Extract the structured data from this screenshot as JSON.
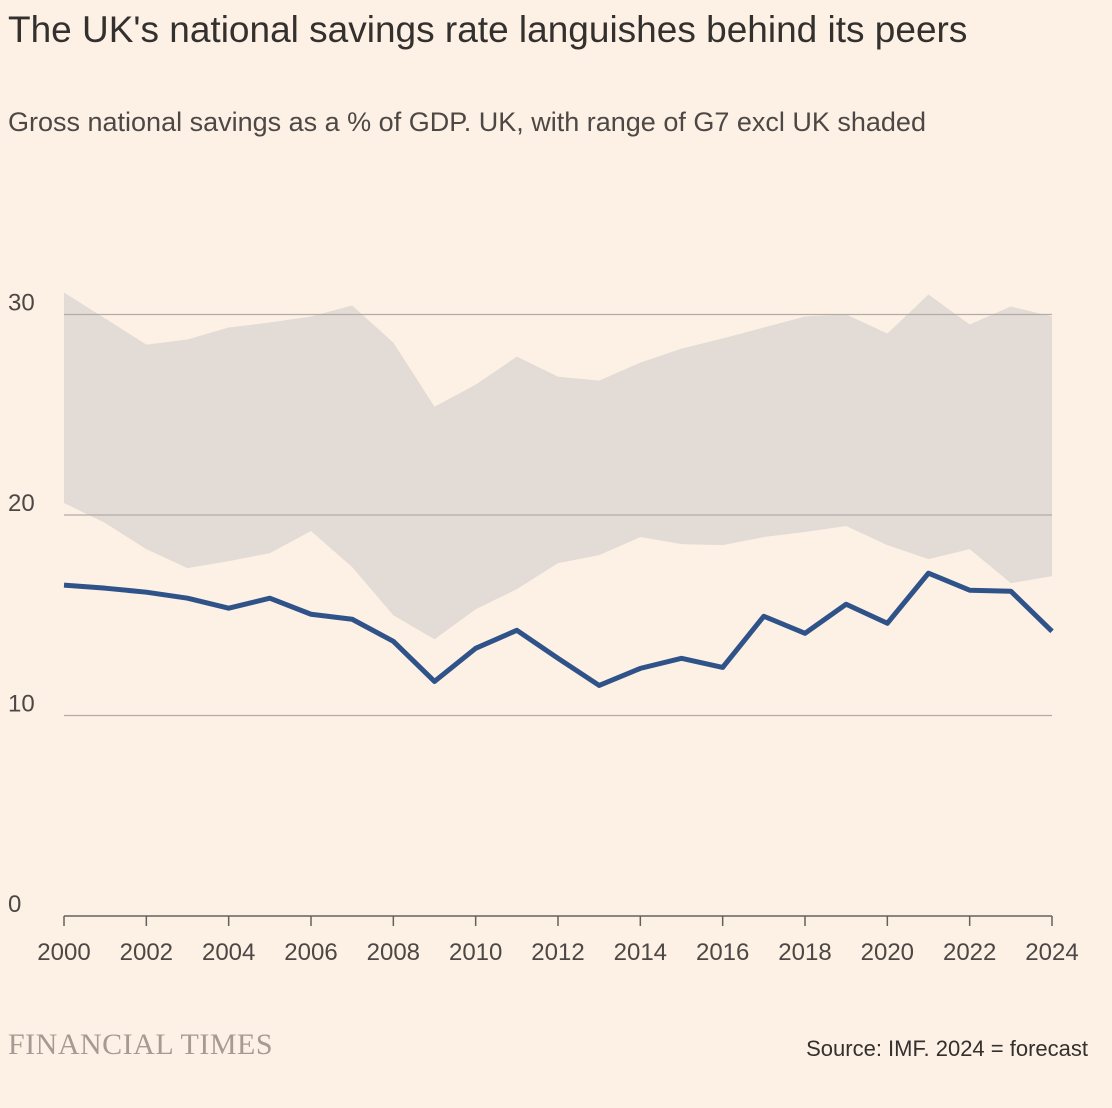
{
  "header": {
    "title": "The UK's national savings rate languishes behind its peers",
    "subtitle": "Gross national savings as a % of GDP. UK, with range of G7 excl UK shaded"
  },
  "footer": {
    "brand": "FINANCIAL TIMES",
    "source": "Source: IMF. 2024 = forecast"
  },
  "colors": {
    "background": "#fdf1e6",
    "uk_line": "#2f5389",
    "range_band": "#e3dbd5",
    "gridline": "#b3aca6",
    "axis": "#66605c"
  },
  "chart_data": {
    "type": "line",
    "x": [
      2000,
      2001,
      2002,
      2003,
      2004,
      2005,
      2006,
      2007,
      2008,
      2009,
      2010,
      2011,
      2012,
      2013,
      2014,
      2015,
      2016,
      2017,
      2018,
      2019,
      2020,
      2021,
      2022,
      2023,
      2024
    ],
    "xticks": [
      2000,
      2002,
      2004,
      2006,
      2008,
      2010,
      2012,
      2014,
      2016,
      2018,
      2020,
      2022,
      2024
    ],
    "xticklabels": [
      "2000",
      "2002",
      "2004",
      "2006",
      "2008",
      "2010",
      "2012",
      "2014",
      "2016",
      "2018",
      "2020",
      "2022",
      "2024"
    ],
    "yticks": [
      0,
      10,
      20,
      30
    ],
    "yticklabels": [
      "0",
      "10",
      "20",
      "30"
    ],
    "ylim": [
      0,
      34
    ],
    "xlim": [
      2000,
      2024
    ],
    "xlabel": "",
    "ylabel": "",
    "grid": true,
    "series": [
      {
        "name": "UK",
        "values": [
          16.5,
          16.35,
          16.15,
          15.85,
          15.35,
          15.85,
          15.05,
          14.8,
          13.7,
          11.7,
          13.35,
          14.25,
          12.85,
          11.5,
          12.35,
          12.85,
          12.4,
          14.95,
          14.1,
          15.55,
          14.6,
          17.1,
          16.25,
          16.2,
          14.2
        ]
      }
    ],
    "range": {
      "name": "G7 excl UK",
      "low": [
        20.6,
        19.6,
        18.3,
        17.35,
        17.7,
        18.1,
        19.2,
        17.4,
        15.0,
        13.8,
        15.3,
        16.3,
        17.6,
        18.0,
        18.9,
        18.55,
        18.5,
        18.9,
        19.15,
        19.45,
        18.5,
        17.8,
        18.3,
        16.6,
        16.95
      ],
      "high": [
        31.1,
        29.8,
        28.5,
        28.75,
        29.35,
        29.6,
        29.9,
        30.45,
        28.6,
        25.4,
        26.5,
        27.9,
        26.9,
        26.7,
        27.6,
        28.3,
        28.8,
        29.35,
        29.9,
        30.0,
        29.05,
        31.0,
        29.5,
        30.4,
        29.9
      ]
    }
  }
}
